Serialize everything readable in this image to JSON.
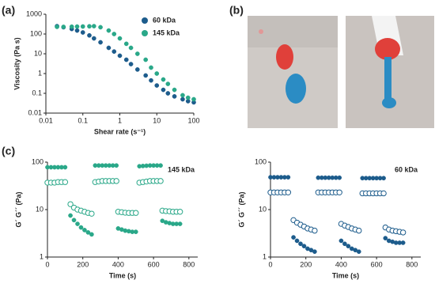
{
  "panel_labels": {
    "a": "(a)",
    "b": "(b)",
    "c": "(c)"
  },
  "chart_data": [
    {
      "type": "scatter",
      "x_label": "Shear rate (s⁻¹)",
      "y_label": "Viscosity (Pa s)",
      "xscale": "log",
      "yscale": "log",
      "xlim": [
        0.01,
        100
      ],
      "ylim": [
        0.01,
        1000
      ],
      "xticks": [
        0.01,
        0.1,
        1,
        10,
        100
      ],
      "yticks": [
        0.01,
        0.1,
        1,
        10,
        100,
        1000
      ],
      "legend": "top-right",
      "series": [
        {
          "name": "60 kDa",
          "color": "#1d5c8c",
          "marker": "filled",
          "x": [
            0.02,
            0.03,
            0.05,
            0.07,
            0.1,
            0.15,
            0.2,
            0.3,
            0.5,
            0.7,
            1,
            1.5,
            2,
            3,
            5,
            7,
            10,
            15,
            20,
            30,
            50,
            70,
            100
          ],
          "values": [
            250,
            220,
            180,
            150,
            120,
            85,
            60,
            38,
            20,
            13,
            8,
            5,
            3,
            1.6,
            0.8,
            0.45,
            0.25,
            0.15,
            0.1,
            0.07,
            0.05,
            0.04,
            0.035
          ]
        },
        {
          "name": "145 kDa",
          "color": "#2aa889",
          "marker": "filled",
          "x": [
            0.02,
            0.03,
            0.05,
            0.07,
            0.1,
            0.15,
            0.2,
            0.3,
            0.5,
            0.7,
            1,
            1.5,
            2,
            3,
            5,
            7,
            10,
            15,
            20,
            30,
            50,
            70,
            100
          ],
          "values": [
            230,
            230,
            235,
            238,
            240,
            245,
            250,
            220,
            150,
            100,
            60,
            32,
            20,
            10,
            5,
            2,
            1,
            0.5,
            0.3,
            0.15,
            0.08,
            0.06,
            0.05
          ]
        }
      ]
    },
    {
      "type": "scatter",
      "x_label": "Time (s)",
      "y_label": "G´ G´´ (Pa)",
      "annotation": "145 kDa",
      "yscale": "log",
      "xlim": [
        0,
        850
      ],
      "ylim": [
        1,
        100
      ],
      "xticks": [
        0,
        200,
        400,
        600,
        800
      ],
      "yticks": [
        1,
        10,
        100
      ],
      "series": [
        {
          "color": "#2aa889",
          "marker": "filled",
          "x": [
            0,
            20,
            40,
            60,
            80,
            100,
            130,
            150,
            170,
            190,
            210,
            230,
            250,
            270,
            290,
            310,
            330,
            350,
            370,
            390,
            400,
            420,
            440,
            460,
            480,
            500,
            520,
            540,
            560,
            580,
            600,
            620,
            640,
            650,
            670,
            690,
            710,
            730,
            750
          ],
          "values": [
            78,
            78,
            78,
            78,
            78,
            78,
            7.5,
            6,
            5,
            4.2,
            3.7,
            3.3,
            3,
            85,
            85,
            85,
            85,
            85,
            85,
            85,
            4,
            3.8,
            3.6,
            3.5,
            3.4,
            3.4,
            82,
            83,
            84,
            85,
            85,
            85,
            85,
            5.8,
            5.4,
            5.2,
            5,
            5,
            5
          ]
        },
        {
          "color": "#2aa889",
          "marker": "open",
          "x": [
            0,
            20,
            40,
            60,
            80,
            100,
            130,
            150,
            170,
            190,
            210,
            230,
            250,
            270,
            290,
            310,
            330,
            350,
            370,
            390,
            400,
            420,
            440,
            460,
            480,
            500,
            520,
            540,
            560,
            580,
            600,
            620,
            640,
            650,
            670,
            690,
            710,
            730,
            750
          ],
          "values": [
            37,
            37,
            37,
            38,
            38,
            38,
            13,
            11,
            10,
            9.5,
            9,
            8.5,
            8.2,
            38,
            39,
            40,
            40,
            40,
            40,
            40,
            9,
            8.8,
            8.6,
            8.5,
            8.5,
            8.5,
            37,
            38,
            39,
            40,
            40,
            40,
            40,
            9.5,
            9.3,
            9.2,
            9,
            9,
            9
          ]
        }
      ]
    },
    {
      "type": "scatter",
      "x_label": "Time (s)",
      "y_label": "G´ G´´ (Pa)",
      "annotation": "60 kDa",
      "yscale": "log",
      "xlim": [
        0,
        850
      ],
      "ylim": [
        1,
        100
      ],
      "xticks": [
        0,
        200,
        400,
        600,
        800
      ],
      "yticks": [
        1,
        10,
        100
      ],
      "series": [
        {
          "color": "#1d5c8c",
          "marker": "filled",
          "x": [
            0,
            20,
            40,
            60,
            80,
            100,
            130,
            150,
            170,
            190,
            210,
            230,
            250,
            270,
            290,
            310,
            330,
            350,
            370,
            390,
            400,
            420,
            440,
            460,
            480,
            500,
            520,
            540,
            560,
            580,
            600,
            620,
            640,
            650,
            670,
            690,
            710,
            730,
            750
          ],
          "values": [
            48,
            48,
            48,
            48,
            48,
            48,
            2.6,
            2.2,
            1.9,
            1.7,
            1.5,
            1.4,
            1.3,
            47,
            47,
            47,
            47,
            47,
            47,
            47,
            2.2,
            1.9,
            1.7,
            1.5,
            1.4,
            1.3,
            46,
            46,
            46,
            46,
            46,
            46,
            46,
            2.5,
            2.2,
            2.1,
            2,
            2,
            2
          ]
        },
        {
          "color": "#1d5c8c",
          "marker": "open",
          "x": [
            0,
            20,
            40,
            60,
            80,
            100,
            130,
            150,
            170,
            190,
            210,
            230,
            250,
            270,
            290,
            310,
            330,
            350,
            370,
            390,
            400,
            420,
            440,
            460,
            480,
            500,
            520,
            540,
            560,
            580,
            600,
            620,
            640,
            650,
            670,
            690,
            710,
            730,
            750
          ],
          "values": [
            23,
            23,
            23,
            23,
            23,
            23,
            6,
            5.3,
            4.8,
            4.4,
            4,
            3.8,
            3.6,
            23,
            23,
            23,
            23,
            23,
            23,
            23,
            5,
            4.6,
            4.3,
            4,
            3.8,
            3.6,
            22,
            22,
            22,
            22,
            22,
            22,
            22,
            4.2,
            3.8,
            3.6,
            3.5,
            3.4,
            3.3
          ]
        }
      ]
    }
  ]
}
